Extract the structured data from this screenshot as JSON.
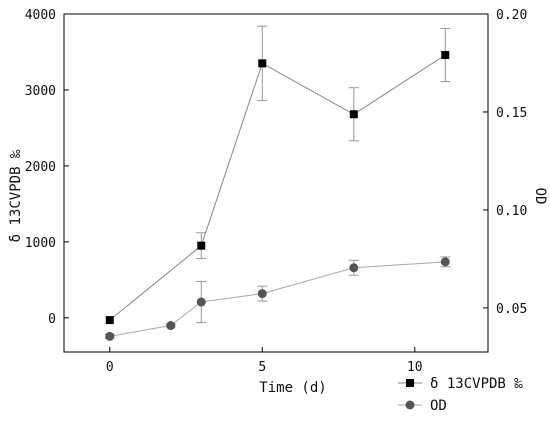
{
  "chart_data": {
    "type": "line",
    "xlabel": "Time (d)",
    "ylabel_left": "δ 13CVPDB ‰",
    "ylabel_right": "OD",
    "xlim": [
      -1.5,
      12.4
    ],
    "xticks": [
      0,
      5,
      10
    ],
    "ylim_left": [
      -450,
      4000
    ],
    "yticks_left": [
      0,
      1000,
      2000,
      3000,
      4000
    ],
    "ylim_right": [
      0.0275,
      0.2
    ],
    "yticks_right": [
      0.05,
      0.1,
      0.15,
      0.2
    ],
    "ytick_labels_right": [
      "0.05",
      "0.10",
      "0.15",
      "0.20"
    ],
    "grid": false,
    "legend_position": "bottom-right",
    "series": [
      {
        "name": "δ 13CVPDB ‰",
        "axis": "left",
        "marker": "square",
        "color": "#000000",
        "line_color": "#888888",
        "x": [
          0,
          3,
          5,
          8,
          11
        ],
        "y": [
          -30,
          950,
          3350,
          2680,
          3460
        ],
        "err": [
          0,
          170,
          490,
          350,
          350
        ]
      },
      {
        "name": "OD",
        "axis": "right",
        "marker": "circle",
        "color": "#555555",
        "line_color": "#aaaaaa",
        "x": [
          0,
          2,
          3,
          5,
          8,
          11
        ],
        "y": [
          0.0355,
          0.041,
          0.053,
          0.0573,
          0.0705,
          0.0735
        ],
        "err": [
          0.001,
          0.0008,
          0.0105,
          0.0038,
          0.0038,
          0.0025
        ]
      }
    ]
  }
}
